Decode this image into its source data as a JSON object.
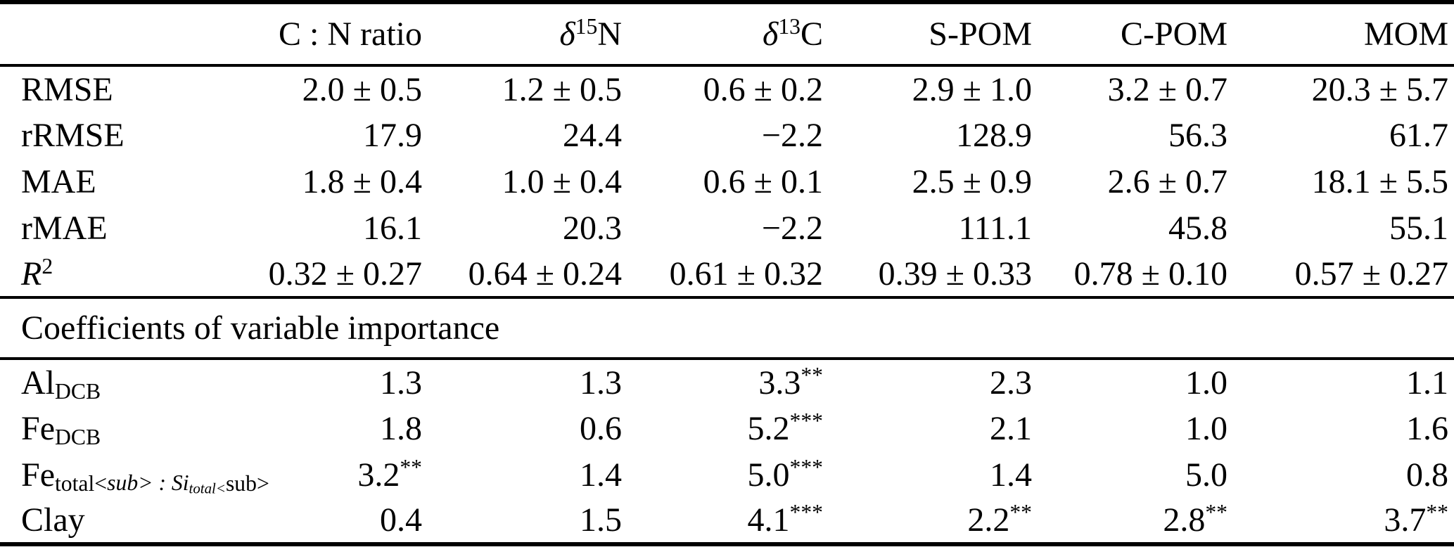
{
  "colors": {
    "background": "#ffffff",
    "text": "#000000",
    "rule": "#000000"
  },
  "table": {
    "columns": [
      "",
      "C : N ratio",
      "/δ/^{15}N",
      "/δ/^{13}C",
      "S-POM",
      "C-POM",
      "MOM"
    ],
    "metrics": {
      "rows": [
        {
          "label": "RMSE",
          "values": [
            "2.0 ± 0.5",
            "1.2 ± 0.5",
            "0.6 ± 0.2",
            "2.9 ± 1.0",
            "3.2 ± 0.7",
            "20.3 ± 5.7"
          ]
        },
        {
          "label": "rRMSE",
          "values": [
            "17.9",
            "24.4",
            "−2.2",
            "128.9",
            "56.3",
            "61.7"
          ]
        },
        {
          "label": "MAE",
          "values": [
            "1.8 ± 0.4",
            "1.0 ± 0.4",
            "0.6 ± 0.1",
            "2.5 ± 0.9",
            "2.6 ± 0.7",
            "18.1 ± 5.5"
          ]
        },
        {
          "label": "rMAE",
          "values": [
            "16.1",
            "20.3",
            "−2.2",
            "111.1",
            "45.8",
            "55.1"
          ]
        },
        {
          "label": "/R/^{2}",
          "values": [
            "0.32 ± 0.27",
            "0.64 ± 0.24",
            "0.61 ± 0.32",
            "0.39 ± 0.33",
            "0.78 ± 0.10",
            "0.57 ± 0.27"
          ]
        }
      ]
    },
    "section_title": "Coefficients of variable importance",
    "coefficients": {
      "rows": [
        {
          "label": "Al_{DCB}",
          "values": [
            "1.3",
            "1.3",
            "3.3^{**}",
            "2.3",
            "1.0",
            "1.1"
          ]
        },
        {
          "label": "Fe_{DCB}",
          "values": [
            "1.8",
            "0.6",
            "5.2^{***}",
            "2.1",
            "1.0",
            "1.6"
          ]
        },
        {
          "label": "Fe_{total} : Si_{total}",
          "values": [
            "3.2^{**}",
            "1.4",
            "5.0^{***}",
            "1.4",
            "5.0",
            "0.8"
          ]
        },
        {
          "label": "Clay",
          "values": [
            "0.4",
            "1.5",
            "4.1^{***}",
            "2.2^{**}",
            "2.8^{**}",
            "3.7^{**}"
          ]
        }
      ]
    }
  },
  "chart_data": {
    "type": "table",
    "columns": [
      "",
      "C:N ratio",
      "δ15N",
      "δ13C",
      "S-POM",
      "C-POM",
      "MOM"
    ],
    "rows": [
      [
        "RMSE",
        "2.0 ± 0.5",
        "1.2 ± 0.5",
        "0.6 ± 0.2",
        "2.9 ± 1.0",
        "3.2 ± 0.7",
        "20.3 ± 5.7"
      ],
      [
        "rRMSE",
        "17.9",
        "24.4",
        "−2.2",
        "128.9",
        "56.3",
        "61.7"
      ],
      [
        "MAE",
        "1.8 ± 0.4",
        "1.0 ± 0.4",
        "0.6 ± 0.1",
        "2.5 ± 0.9",
        "2.6 ± 0.7",
        "18.1 ± 5.5"
      ],
      [
        "rMAE",
        "16.1",
        "20.3",
        "−2.2",
        "111.1",
        "45.8",
        "55.1"
      ],
      [
        "R2",
        "0.32 ± 0.27",
        "0.64 ± 0.24",
        "0.61 ± 0.32",
        "0.39 ± 0.33",
        "0.78 ± 0.10",
        "0.57 ± 0.27"
      ],
      [
        "Coefficients of variable importance",
        "",
        "",
        "",
        "",
        "",
        ""
      ],
      [
        "Al_DCB",
        "1.3",
        "1.3",
        "3.3**",
        "2.3",
        "1.0",
        "1.1"
      ],
      [
        "Fe_DCB",
        "1.8",
        "0.6",
        "5.2***",
        "2.1",
        "1.0",
        "1.6"
      ],
      [
        "Fe_total:Si_total",
        "3.2**",
        "1.4",
        "5.0***",
        "1.4",
        "5.0",
        "0.8"
      ],
      [
        "Clay",
        "0.4",
        "1.5",
        "4.1***",
        "2.2**",
        "2.8**",
        "3.7**"
      ]
    ]
  }
}
